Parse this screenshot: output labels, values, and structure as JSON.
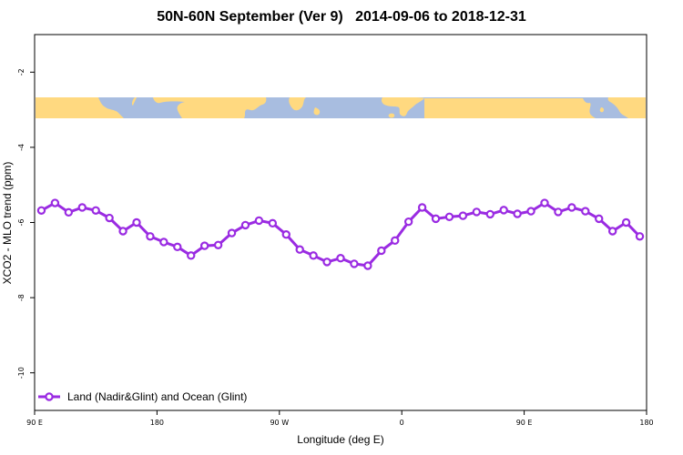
{
  "chart_data": {
    "type": "line",
    "title": "50N-60N September (Ver 9)   2014-09-06 to 2018-12-31",
    "xlabel": "Longitude (deg E)",
    "ylabel": "XCO2 - MLO trend (ppm)",
    "xlim": [
      90,
      540
    ],
    "ylim": [
      -11,
      -1
    ],
    "x_ticks": [
      {
        "value": 90,
        "label": "90 E"
      },
      {
        "value": 180,
        "label": "180"
      },
      {
        "value": 270,
        "label": "90 W"
      },
      {
        "value": 360,
        "label": "0"
      },
      {
        "value": 450,
        "label": "90 E"
      },
      {
        "value": 540,
        "label": "180"
      }
    ],
    "y_ticks": [
      {
        "value": -2,
        "label": "-2"
      },
      {
        "value": -4,
        "label": "-4"
      },
      {
        "value": -6,
        "label": "-6"
      },
      {
        "value": -8,
        "label": "-8"
      },
      {
        "value": -10,
        "label": "-10"
      }
    ],
    "grid": false,
    "legend_position": "bottom-left",
    "series": [
      {
        "name": "Land (Nadir&Glint) and Ocean (Glint)",
        "color": "#9a2be2",
        "x": [
          95,
          105,
          115,
          125,
          135,
          145,
          155,
          165,
          175,
          185,
          195,
          205,
          215,
          225,
          235,
          245,
          255,
          265,
          275,
          285,
          295,
          305,
          315,
          325,
          335,
          345,
          355,
          365,
          375,
          385,
          395,
          405,
          415,
          425,
          435,
          445,
          455,
          465,
          475,
          485,
          495,
          505,
          515,
          525,
          535
        ],
        "y": [
          -5.68,
          -5.48,
          -5.73,
          -5.6,
          -5.68,
          -5.88,
          -6.23,
          -6.0,
          -6.37,
          -6.52,
          -6.65,
          -6.88,
          -6.62,
          -6.6,
          -6.28,
          -6.07,
          -5.95,
          -6.02,
          -6.32,
          -6.72,
          -6.88,
          -7.05,
          -6.95,
          -7.1,
          -7.15,
          -6.75,
          -6.48,
          -5.98,
          -5.6,
          -5.9,
          -5.85,
          -5.82,
          -5.72,
          -5.78,
          -5.67,
          -5.77,
          -5.7,
          -5.48,
          -5.72,
          -5.6,
          -5.7,
          -5.9,
          -6.23,
          -6.0,
          -6.37
        ]
      }
    ],
    "map_band": {
      "ocean_color": "#a8bde0",
      "land_color": "#ffd980"
    }
  }
}
